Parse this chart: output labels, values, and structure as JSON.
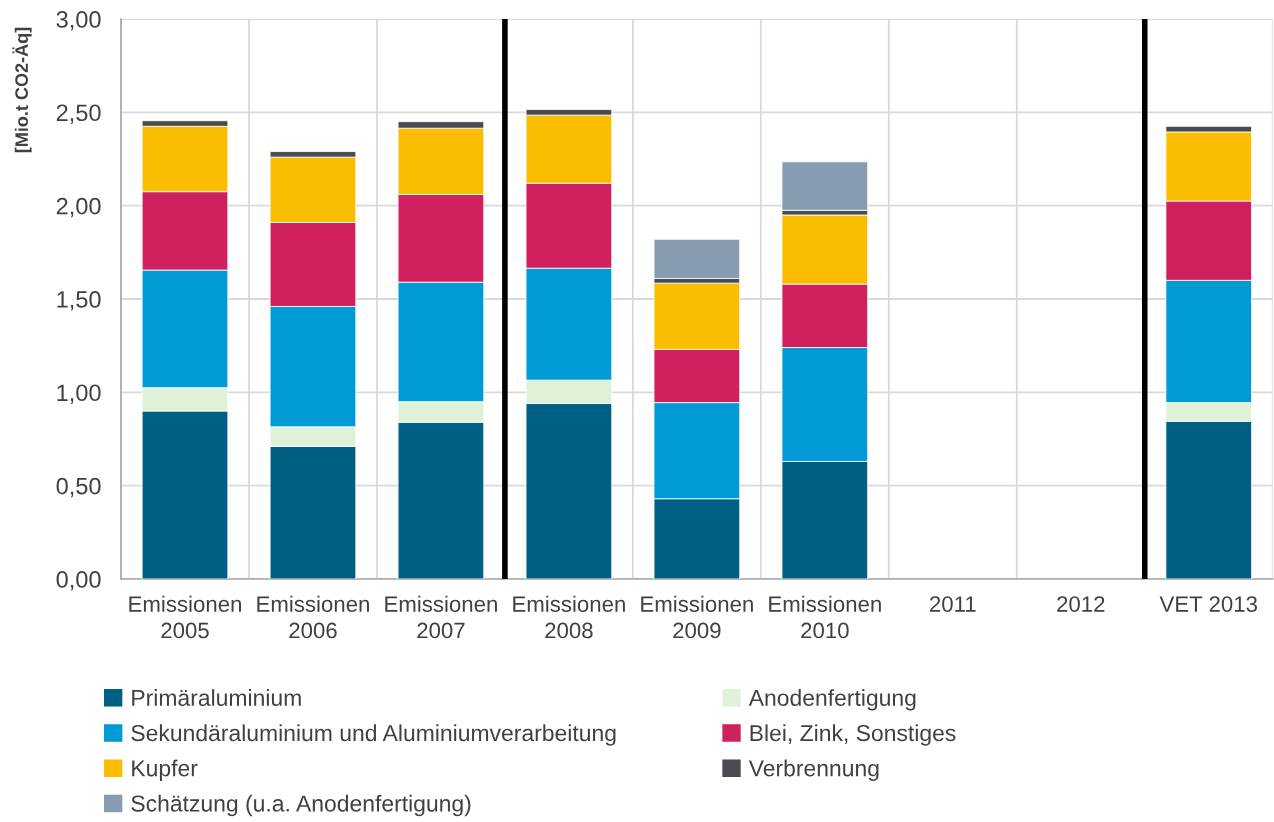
{
  "chart_data": {
    "type": "bar",
    "stacked": true,
    "ylabel": "[Mio.t CO2-Äq]",
    "categories": [
      "Emissionen\n2005",
      "Emissionen\n2006",
      "Emissionen\n2007",
      "Emissionen\n2008",
      "Emissionen\n2009",
      "Emissionen\n2010",
      "2011",
      "2012",
      "VET 2013"
    ],
    "series": [
      {
        "name": "Primäraluminium",
        "color": "#005f85",
        "values": [
          0.9,
          0.71,
          0.84,
          0.94,
          0.43,
          0.63,
          null,
          null,
          0.845
        ]
      },
      {
        "name": "Anodenfertigung",
        "color": "#dff2d8",
        "values": [
          0.125,
          0.105,
          0.11,
          0.125,
          null,
          null,
          null,
          null,
          0.1
        ]
      },
      {
        "name": "Sekundäraluminium und Aluminiumverarbeitung",
        "color": "#009bd5",
        "values": [
          0.63,
          0.645,
          0.64,
          0.6,
          0.515,
          0.61,
          null,
          null,
          0.655
        ]
      },
      {
        "name": "Blei, Zink, Sonstiges",
        "color": "#cf2160",
        "values": [
          0.42,
          0.45,
          0.47,
          0.455,
          0.285,
          0.34,
          null,
          null,
          0.425
        ]
      },
      {
        "name": "Kupfer",
        "color": "#fbbd00",
        "values": [
          0.35,
          0.35,
          0.355,
          0.365,
          0.355,
          0.37,
          null,
          null,
          0.37
        ]
      },
      {
        "name": "Verbrennung",
        "color": "#4a4a4f",
        "values": [
          0.03,
          0.03,
          0.035,
          0.03,
          0.025,
          0.025,
          null,
          null,
          0.03
        ]
      },
      {
        "name": "Schätzung (u.a. Anodenfertigung)",
        "color": "#879cb0",
        "values": [
          null,
          null,
          null,
          null,
          0.21,
          0.26,
          null,
          null,
          null
        ]
      }
    ],
    "ylim": [
      0,
      3
    ],
    "yticks": [
      {
        "value": 0,
        "label": "0,00"
      },
      {
        "value": 0.5,
        "label": "0,50"
      },
      {
        "value": 1,
        "label": "1,00"
      },
      {
        "value": 1.5,
        "label": "1,50"
      },
      {
        "value": 2,
        "label": "2,00"
      },
      {
        "value": 2.5,
        "label": "2,50"
      },
      {
        "value": 3,
        "label": "3,00"
      }
    ],
    "grid": true,
    "legend": "bottom"
  }
}
